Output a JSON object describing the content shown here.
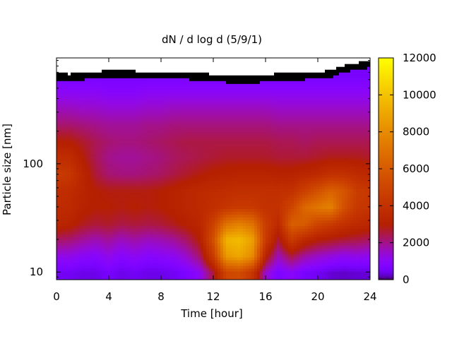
{
  "chart_data": {
    "type": "heatmap",
    "title": "dN / d log d (5/9/1)",
    "xlabel": "Time [hour]",
    "ylabel": "Particle size [nm]",
    "xlim": [
      0,
      24
    ],
    "ylim": [
      8.5,
      950
    ],
    "y_scale": "log",
    "x_ticks": [
      0,
      4,
      8,
      12,
      16,
      20,
      24
    ],
    "y_ticks": [
      10,
      100
    ],
    "colorbar": {
      "min": 0,
      "max": 12000,
      "ticks": [
        0,
        2000,
        4000,
        6000,
        8000,
        10000,
        12000
      ],
      "palette": "black-purple-red-orange-yellow"
    },
    "grid": false,
    "x_hours": [
      0,
      1,
      2,
      3,
      4,
      5,
      6,
      7,
      8,
      9,
      10,
      11,
      12,
      13,
      14,
      15,
      16,
      17,
      18,
      19,
      20,
      21,
      22,
      23,
      24
    ],
    "size_nm": [
      10,
      14,
      20,
      28,
      40,
      56,
      80,
      115,
      160,
      230,
      330,
      470,
      650
    ],
    "concentration": [
      [
        500,
        1200,
        2300,
        3400,
        3700,
        3800,
        4600,
        3800,
        3000,
        2200,
        1600,
        1000,
        600
      ],
      [
        500,
        1200,
        2200,
        3200,
        3600,
        3700,
        4300,
        3700,
        3000,
        2200,
        1600,
        1000,
        600
      ],
      [
        400,
        1000,
        1900,
        2800,
        3200,
        3300,
        3400,
        3000,
        2700,
        2100,
        1500,
        1000,
        600
      ],
      [
        400,
        900,
        1700,
        2600,
        3000,
        3000,
        2600,
        2400,
        2400,
        2000,
        1500,
        1000,
        600
      ],
      [
        600,
        1200,
        1900,
        2700,
        3000,
        2900,
        2200,
        2000,
        2200,
        1900,
        1400,
        900,
        600
      ],
      [
        400,
        900,
        1600,
        2500,
        2900,
        2900,
        2100,
        1900,
        2100,
        1900,
        1400,
        900,
        600
      ],
      [
        500,
        1100,
        1800,
        2600,
        3000,
        2900,
        2100,
        1900,
        2100,
        1900,
        1400,
        900,
        600
      ],
      [
        400,
        900,
        1600,
        2500,
        2900,
        2900,
        2200,
        2000,
        2200,
        2000,
        1500,
        1000,
        600
      ],
      [
        400,
        1000,
        1700,
        2600,
        3000,
        3000,
        2300,
        2100,
        2300,
        2000,
        1500,
        1000,
        600
      ],
      [
        500,
        1100,
        1900,
        2800,
        3200,
        3200,
        2500,
        2300,
        2400,
        2100,
        1600,
        1000,
        600
      ],
      [
        700,
        1500,
        2300,
        3100,
        3400,
        3400,
        2700,
        2400,
        2500,
        2100,
        1600,
        1000,
        600
      ],
      [
        1100,
        2200,
        3000,
        3400,
        3600,
        3600,
        2900,
        2500,
        2500,
        2100,
        1600,
        1000,
        600
      ],
      [
        2500,
        4500,
        5500,
        4800,
        3800,
        3700,
        3100,
        2600,
        2500,
        2100,
        1600,
        1000,
        600
      ],
      [
        5000,
        8500,
        9500,
        7000,
        4200,
        3800,
        3200,
        2700,
        2500,
        2100,
        1600,
        1000,
        600
      ],
      [
        5300,
        9000,
        9800,
        7600,
        4500,
        3900,
        3300,
        2700,
        2500,
        2100,
        1600,
        1000,
        600
      ],
      [
        4200,
        8000,
        8800,
        7000,
        4400,
        3900,
        3300,
        2700,
        2500,
        2100,
        1600,
        1000,
        600
      ],
      [
        1500,
        3200,
        4500,
        4600,
        4000,
        3900,
        3300,
        2700,
        2500,
        2100,
        1600,
        1000,
        600
      ],
      [
        700,
        1600,
        2600,
        3600,
        4000,
        3900,
        3200,
        2600,
        2400,
        2000,
        1500,
        1000,
        600
      ],
      [
        1000,
        2500,
        4500,
        6200,
        5000,
        4000,
        3200,
        2600,
        2400,
        2000,
        1500,
        1000,
        600
      ],
      [
        600,
        1800,
        3500,
        6000,
        6600,
        4800,
        3400,
        2600,
        2300,
        2000,
        1500,
        1000,
        600
      ],
      [
        500,
        1500,
        3000,
        5000,
        7200,
        5600,
        3600,
        2700,
        2400,
        2000,
        1500,
        1000,
        600
      ],
      [
        300,
        1300,
        2800,
        4500,
        7600,
        6400,
        4000,
        2800,
        2400,
        2000,
        1500,
        1000,
        600
      ],
      [
        250,
        1100,
        2600,
        4000,
        5500,
        5800,
        4000,
        2800,
        2400,
        2000,
        1500,
        1000,
        600
      ],
      [
        300,
        1200,
        2500,
        3600,
        4400,
        4600,
        3700,
        2800,
        2400,
        2000,
        1500,
        1000,
        600
      ],
      [
        300,
        1100,
        2300,
        3400,
        4200,
        4400,
        3500,
        2700,
        2400,
        2000,
        1500,
        1000,
        600
      ]
    ],
    "upper_cutoff_nm": [
      [
        0,
        700
      ],
      [
        1,
        680
      ],
      [
        3,
        720
      ],
      [
        5,
        740
      ],
      [
        7,
        710
      ],
      [
        9,
        720
      ],
      [
        11,
        690
      ],
      [
        13,
        660
      ],
      [
        15,
        650
      ],
      [
        17,
        690
      ],
      [
        19,
        700
      ],
      [
        21,
        730
      ],
      [
        22,
        820
      ],
      [
        24,
        900
      ]
    ]
  }
}
